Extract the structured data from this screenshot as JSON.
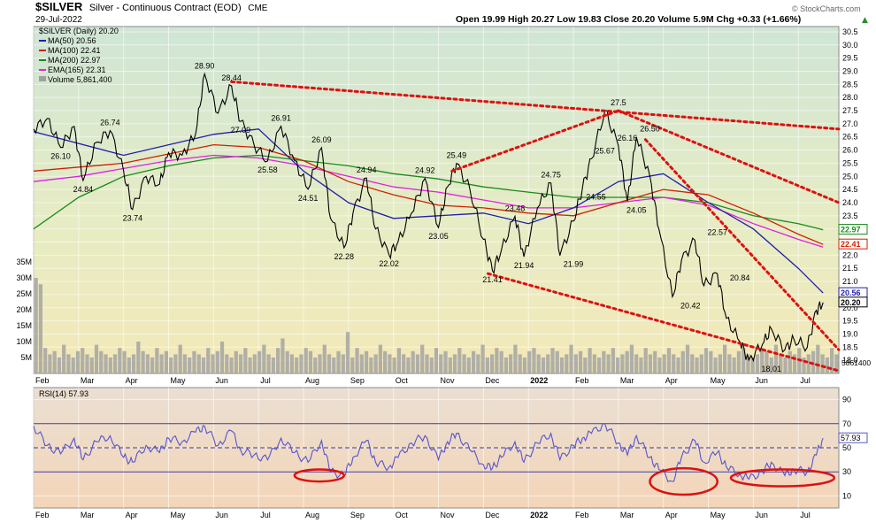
{
  "header": {
    "symbol": "$SILVER",
    "title": "Silver - Continuous Contract (EOD)",
    "exchange": "CME",
    "date": "29-Jul-2022",
    "ohlc": "Open 19.99  High 20.27  Low 19.83  Close 20.20  Volume 5.9M  Chg +0.33 (+1.66%)",
    "chg_arrow": "▲",
    "copyright": "© StockCharts.com"
  },
  "legend": {
    "price": "$SILVER (Daily) 20.20",
    "ma50": "MA(50) 20.56",
    "ma100": "MA(100) 22.41",
    "ma200": "MA(200) 22.97",
    "ema165": "EMA(165) 22.31",
    "volume": "Volume 5,861,400",
    "rsi": "RSI(14) 57.93"
  },
  "colors": {
    "price": "#000000",
    "ma50": "#1f1fa8",
    "ma100": "#cc2200",
    "ma200": "#1a8a1a",
    "ema165": "#e020e0",
    "volume": "#a0a0a0",
    "rsi": "#5555cc",
    "trend": "#dd1111",
    "top_bg": "#dfe9c8",
    "rsi_bg": "#f3dcc2"
  },
  "chart_data": [
    {
      "type": "line",
      "panel": "price",
      "ylim": [
        17.5,
        30.7
      ],
      "yticks": [
        18.0,
        18.5,
        19.0,
        19.5,
        20.0,
        20.5,
        21.0,
        21.5,
        22.0,
        22.5,
        23.0,
        23.5,
        24.0,
        24.5,
        25.0,
        25.5,
        26.0,
        26.5,
        27.0,
        27.5,
        28.0,
        28.5,
        29.0,
        29.5,
        30.0,
        30.5
      ],
      "ytick_labels": [
        "18.0",
        "18.5",
        "19.0",
        "19.5",
        "20.0",
        "20.5",
        "21.0",
        "21.5",
        "22.0",
        "22.5",
        "23.0",
        "23.5",
        "24.0",
        "24.5",
        "25.0",
        "25.5",
        "26.0",
        "26.5",
        "27.0",
        "27.5",
        "28.0",
        "28.5",
        "29.0",
        "29.5",
        "30.0",
        "30.5"
      ],
      "xticks": [
        "Feb",
        "Mar",
        "Apr",
        "May",
        "Jun",
        "Jul",
        "Aug",
        "Sep",
        "Oct",
        "Nov",
        "Dec",
        "2022",
        "Feb",
        "Mar",
        "Apr",
        "May",
        "Jun",
        "Jul"
      ],
      "x_months": [
        0,
        1,
        2,
        3,
        4,
        5,
        6,
        7,
        8,
        9,
        10,
        11,
        12,
        13,
        14,
        15,
        16,
        17
      ],
      "price_path_x": [
        0,
        0.3,
        0.6,
        0.9,
        1.1,
        1.4,
        1.7,
        2.0,
        2.2,
        2.5,
        2.8,
        3.0,
        3.3,
        3.6,
        3.8,
        4.1,
        4.4,
        4.6,
        4.9,
        5.2,
        5.5,
        5.8,
        6.1,
        6.4,
        6.6,
        6.9,
        7.1,
        7.4,
        7.6,
        7.9,
        8.1,
        8.4,
        8.7,
        9.0,
        9.2,
        9.4,
        9.7,
        10.0,
        10.2,
        10.4,
        10.7,
        10.9,
        11.2,
        11.5,
        11.7,
        12.0,
        12.2,
        12.4,
        12.7,
        13.0,
        13.2,
        13.4,
        13.7,
        13.9,
        14.2,
        14.4,
        14.7,
        14.9,
        15.2,
        15.4,
        15.7,
        15.9,
        16.2,
        16.4,
        16.7,
        16.9,
        17.2,
        17.4,
        17.55
      ],
      "price_path_y": [
        26.8,
        27.2,
        26.1,
        26.9,
        24.84,
        26.3,
        26.74,
        25.2,
        23.74,
        25.0,
        24.7,
        25.9,
        25.8,
        26.6,
        28.9,
        27.4,
        28.44,
        27.09,
        26.2,
        25.58,
        26.91,
        25.6,
        24.51,
        26.09,
        23.4,
        22.28,
        23.6,
        24.94,
        23.0,
        22.02,
        22.5,
        23.6,
        24.92,
        23.05,
        24.6,
        25.49,
        24.5,
        22.6,
        21.41,
        22.2,
        23.48,
        21.94,
        23.8,
        24.75,
        21.99,
        23.3,
        24.55,
        25.67,
        27.5,
        26.16,
        24.05,
        26.5,
        25.0,
        23.0,
        20.42,
        21.8,
        22.57,
        20.84,
        21.3,
        19.6,
        18.7,
        18.01,
        18.6,
        19.2,
        18.4,
        18.8,
        18.5,
        19.9,
        20.2
      ],
      "ma50": [
        [
          0,
          26.7
        ],
        [
          2,
          25.8
        ],
        [
          4,
          26.6
        ],
        [
          5,
          26.8
        ],
        [
          6,
          25.2
        ],
        [
          7,
          24.0
        ],
        [
          8,
          23.4
        ],
        [
          9,
          23.5
        ],
        [
          10,
          23.6
        ],
        [
          11,
          23.2
        ],
        [
          12,
          23.8
        ],
        [
          13,
          24.8
        ],
        [
          14,
          25.1
        ],
        [
          15,
          24.0
        ],
        [
          16,
          23.0
        ],
        [
          17,
          21.5
        ],
        [
          17.55,
          20.56
        ]
      ],
      "ma100": [
        [
          0,
          25.2
        ],
        [
          2,
          25.5
        ],
        [
          4,
          26.2
        ],
        [
          5,
          26.1
        ],
        [
          6,
          25.6
        ],
        [
          7,
          24.8
        ],
        [
          8,
          24.3
        ],
        [
          9,
          23.9
        ],
        [
          10,
          23.8
        ],
        [
          11,
          23.6
        ],
        [
          12,
          23.5
        ],
        [
          13,
          24.0
        ],
        [
          14,
          24.5
        ],
        [
          15,
          24.3
        ],
        [
          16,
          23.6
        ],
        [
          17,
          22.8
        ],
        [
          17.55,
          22.41
        ]
      ],
      "ma200": [
        [
          0,
          23.0
        ],
        [
          1,
          24.2
        ],
        [
          2,
          25.0
        ],
        [
          3,
          25.4
        ],
        [
          4,
          25.7
        ],
        [
          5,
          25.8
        ],
        [
          6,
          25.6
        ],
        [
          7,
          25.4
        ],
        [
          8,
          25.1
        ],
        [
          9,
          24.9
        ],
        [
          10,
          24.6
        ],
        [
          11,
          24.4
        ],
        [
          12,
          24.2
        ],
        [
          13,
          24.2
        ],
        [
          14,
          24.2
        ],
        [
          15,
          24.0
        ],
        [
          16,
          23.5
        ],
        [
          17,
          23.2
        ],
        [
          17.55,
          22.97
        ]
      ],
      "ema165": [
        [
          0,
          24.8
        ],
        [
          1,
          25.0
        ],
        [
          2,
          25.3
        ],
        [
          3,
          25.6
        ],
        [
          4,
          25.8
        ],
        [
          5,
          25.7
        ],
        [
          6,
          25.4
        ],
        [
          7,
          25.0
        ],
        [
          8,
          24.6
        ],
        [
          9,
          24.4
        ],
        [
          10,
          24.1
        ],
        [
          11,
          23.8
        ],
        [
          12,
          23.8
        ],
        [
          13,
          24.0
        ],
        [
          14,
          24.2
        ],
        [
          15,
          23.9
        ],
        [
          16,
          23.2
        ],
        [
          17,
          22.6
        ],
        [
          17.55,
          22.31
        ]
      ],
      "price_labels": [
        {
          "x": 1.1,
          "y": 24.84,
          "text": "24.84",
          "pos": "below"
        },
        {
          "x": 0.6,
          "y": 26.1,
          "text": "26.10",
          "pos": "below"
        },
        {
          "x": 1.7,
          "y": 26.74,
          "text": "26.74",
          "pos": "above"
        },
        {
          "x": 2.2,
          "y": 23.74,
          "text": "23.74",
          "pos": "below"
        },
        {
          "x": 3.8,
          "y": 28.9,
          "text": "28.90",
          "pos": "above"
        },
        {
          "x": 4.4,
          "y": 28.44,
          "text": "28.44",
          "pos": "above"
        },
        {
          "x": 4.6,
          "y": 27.09,
          "text": "27.09",
          "pos": "below"
        },
        {
          "x": 5.2,
          "y": 25.58,
          "text": "25.58",
          "pos": "below"
        },
        {
          "x": 5.5,
          "y": 26.91,
          "text": "26.91",
          "pos": "above"
        },
        {
          "x": 6.1,
          "y": 24.51,
          "text": "24.51",
          "pos": "below"
        },
        {
          "x": 6.4,
          "y": 26.09,
          "text": "26.09",
          "pos": "above"
        },
        {
          "x": 6.9,
          "y": 22.28,
          "text": "22.28",
          "pos": "below"
        },
        {
          "x": 7.4,
          "y": 24.94,
          "text": "24.94",
          "pos": "above"
        },
        {
          "x": 7.9,
          "y": 22.02,
          "text": "22.02",
          "pos": "below"
        },
        {
          "x": 8.7,
          "y": 24.92,
          "text": "24.92",
          "pos": "above"
        },
        {
          "x": 9.0,
          "y": 23.05,
          "text": "23.05",
          "pos": "below"
        },
        {
          "x": 9.4,
          "y": 25.49,
          "text": "25.49",
          "pos": "above"
        },
        {
          "x": 10.2,
          "y": 21.41,
          "text": "21.41",
          "pos": "below"
        },
        {
          "x": 10.7,
          "y": 23.48,
          "text": "23.48",
          "pos": "above"
        },
        {
          "x": 10.9,
          "y": 21.94,
          "text": "21.94",
          "pos": "below"
        },
        {
          "x": 11.5,
          "y": 24.75,
          "text": "24.75",
          "pos": "above"
        },
        {
          "x": 12.0,
          "y": 21.99,
          "text": "21.99",
          "pos": "below"
        },
        {
          "x": 12.5,
          "y": 24.55,
          "text": "24.55",
          "pos": "below"
        },
        {
          "x": 12.7,
          "y": 25.67,
          "text": "25.67",
          "pos": "above"
        },
        {
          "x": 13.0,
          "y": 27.5,
          "text": "27.5",
          "pos": "above"
        },
        {
          "x": 13.2,
          "y": 26.16,
          "text": "26.16",
          "pos": "above"
        },
        {
          "x": 13.4,
          "y": 24.05,
          "text": "24.05",
          "pos": "below"
        },
        {
          "x": 13.7,
          "y": 26.5,
          "text": "26.50",
          "pos": "above"
        },
        {
          "x": 14.6,
          "y": 20.42,
          "text": "20.42",
          "pos": "below"
        },
        {
          "x": 15.2,
          "y": 22.57,
          "text": "22.57",
          "pos": "above"
        },
        {
          "x": 15.7,
          "y": 20.84,
          "text": "20.84",
          "pos": "above"
        },
        {
          "x": 16.4,
          "y": 18.01,
          "text": "18.01",
          "pos": "below"
        }
      ],
      "trend_lines": [
        [
          [
            4.4,
            28.6
          ],
          [
            17.9,
            26.8
          ]
        ],
        [
          [
            9.3,
            25.2
          ],
          [
            13.0,
            27.5
          ]
        ],
        [
          [
            13.0,
            27.5
          ],
          [
            17.9,
            24.0
          ]
        ],
        [
          [
            10.1,
            21.3
          ],
          [
            17.9,
            17.6
          ]
        ],
        [
          [
            13.6,
            26.4
          ],
          [
            17.9,
            18.4
          ]
        ]
      ],
      "right_labels": [
        {
          "y": 22.97,
          "text": "22.97",
          "color": "#1a8a1a"
        },
        {
          "y": 22.41,
          "text": "22.41",
          "color": "#cc2200"
        },
        {
          "y": 20.56,
          "text": "20.56",
          "color": "#1f1fa8"
        },
        {
          "y": 20.2,
          "text": "20.20",
          "color": "#000000"
        }
      ]
    },
    {
      "type": "bar",
      "panel": "volume",
      "ylim": [
        0,
        35
      ],
      "yticks": [
        5,
        10,
        15,
        20,
        25,
        30,
        35
      ],
      "ytick_labels": [
        "5M",
        "10M",
        "15M",
        "20M",
        "25M",
        "30M",
        "35M"
      ],
      "right_label": "5861400",
      "values": [
        30,
        28,
        8,
        6,
        7,
        5,
        9,
        6,
        5,
        7,
        8,
        6,
        5,
        9,
        7,
        6,
        5,
        6,
        8,
        7,
        5,
        6,
        10,
        7,
        6,
        5,
        8,
        6,
        7,
        5,
        6,
        9,
        6,
        5,
        7,
        6,
        5,
        8,
        6,
        7,
        10,
        6,
        5,
        7,
        6,
        8,
        5,
        6,
        7,
        9,
        6,
        5,
        8,
        11,
        7,
        6,
        5,
        6,
        8,
        7,
        5,
        6,
        9,
        6,
        5,
        7,
        6,
        13,
        5,
        8,
        6,
        7,
        5,
        6,
        9,
        7,
        6,
        5,
        8,
        6,
        5,
        7,
        6,
        9,
        6,
        5,
        8,
        6,
        7,
        5,
        6,
        8,
        6,
        5,
        7,
        6,
        9,
        5,
        6,
        8,
        7,
        5,
        6,
        9,
        6,
        5,
        7,
        8,
        6,
        5,
        6,
        8,
        7,
        5,
        6,
        9,
        6,
        7,
        5,
        8,
        6,
        5,
        7,
        6,
        8,
        5,
        6,
        7,
        9,
        6,
        5,
        8,
        6,
        7,
        5,
        6,
        8,
        6,
        5,
        7,
        9,
        6,
        5,
        6,
        8,
        7,
        5,
        6,
        9,
        6,
        5,
        7,
        8,
        6,
        5,
        6,
        8,
        7,
        5,
        9,
        6,
        5,
        7,
        6,
        8,
        5,
        6,
        7,
        9,
        6,
        5,
        8,
        6
      ]
    },
    {
      "type": "line",
      "panel": "rsi",
      "ylim": [
        0,
        100
      ],
      "yticks": [
        10,
        30,
        50,
        70,
        90
      ],
      "ytick_labels": [
        "10",
        "30",
        "50",
        "70",
        "90"
      ],
      "reference_lines": [
        30,
        50,
        70
      ],
      "right_label": "57.93",
      "xticks": [
        "Feb",
        "Mar",
        "Apr",
        "May",
        "Jun",
        "Jul",
        "Aug",
        "Sep",
        "Oct",
        "Nov",
        "Dec",
        "2022",
        "Feb",
        "Mar",
        "Apr",
        "May",
        "Jun",
        "Jul"
      ],
      "rsi_path_x": [
        0,
        0.3,
        0.6,
        0.9,
        1.1,
        1.4,
        1.7,
        2.0,
        2.2,
        2.5,
        2.8,
        3.0,
        3.3,
        3.6,
        3.8,
        4.1,
        4.4,
        4.6,
        4.9,
        5.2,
        5.5,
        5.8,
        6.1,
        6.4,
        6.6,
        6.9,
        7.1,
        7.4,
        7.6,
        7.9,
        8.1,
        8.4,
        8.7,
        9.0,
        9.2,
        9.4,
        9.7,
        10.0,
        10.2,
        10.4,
        10.7,
        10.9,
        11.2,
        11.5,
        11.7,
        12.0,
        12.2,
        12.4,
        12.7,
        13.0,
        13.2,
        13.4,
        13.7,
        13.9,
        14.2,
        14.4,
        14.7,
        14.9,
        15.2,
        15.4,
        15.7,
        15.9,
        16.2,
        16.4,
        16.7,
        16.9,
        17.2,
        17.4,
        17.55
      ],
      "rsi_path_y": [
        68,
        52,
        45,
        58,
        40,
        55,
        60,
        42,
        38,
        52,
        46,
        58,
        55,
        63,
        68,
        52,
        64,
        48,
        44,
        40,
        58,
        46,
        38,
        56,
        30,
        27,
        42,
        56,
        38,
        34,
        42,
        54,
        60,
        40,
        55,
        62,
        48,
        36,
        33,
        42,
        55,
        38,
        54,
        62,
        40,
        52,
        58,
        62,
        70,
        54,
        44,
        60,
        42,
        32,
        22,
        42,
        56,
        38,
        46,
        34,
        28,
        24,
        30,
        38,
        27,
        32,
        30,
        44,
        57.93
      ],
      "ellipses": [
        {
          "cx": 6.35,
          "cy": 27,
          "rx": 0.55,
          "ry": 5
        },
        {
          "cx": 14.45,
          "cy": 22,
          "rx": 0.75,
          "ry": 11
        },
        {
          "cx": 16.65,
          "cy": 25,
          "rx": 1.15,
          "ry": 7
        }
      ]
    }
  ]
}
